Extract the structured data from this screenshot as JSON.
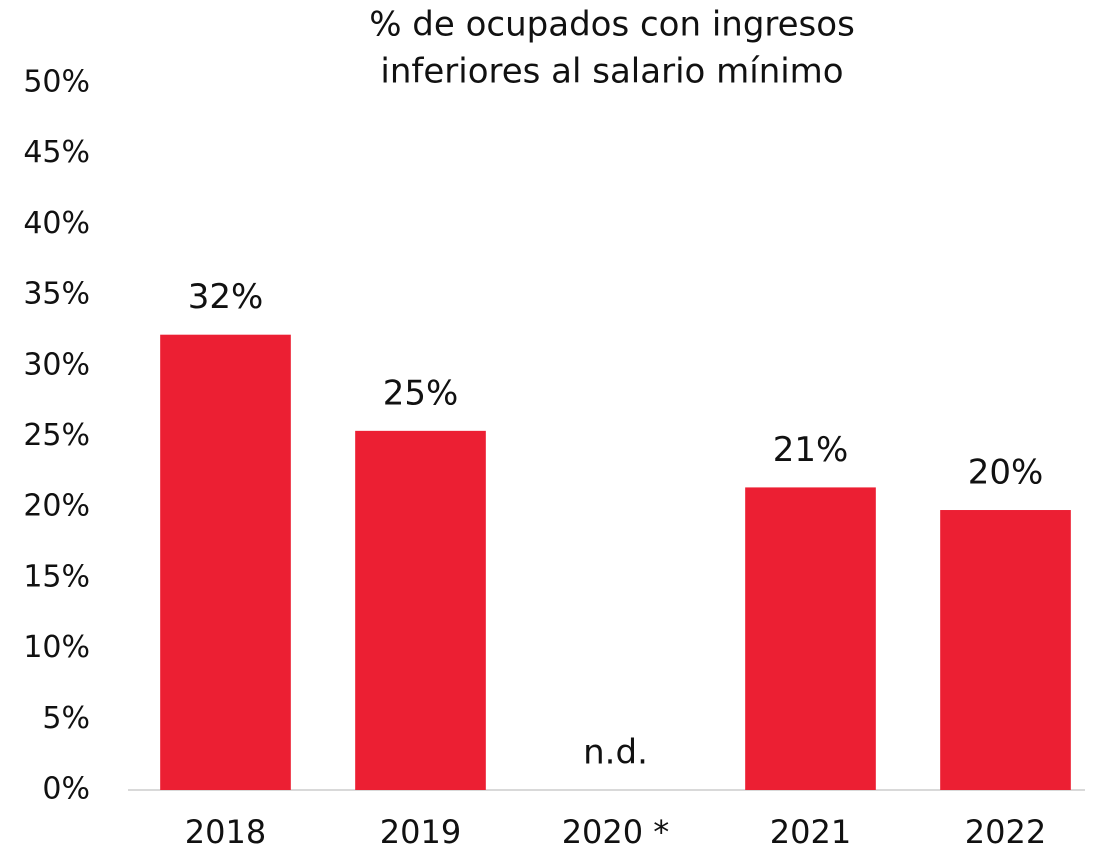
{
  "chart_data": {
    "type": "bar",
    "title": [
      "% de ocupados con ingresos",
      "inferiores al salario mínimo"
    ],
    "categories": [
      "2018",
      "2019",
      "2020 *",
      "2021",
      "2022"
    ],
    "values": [
      32.2,
      25.4,
      null,
      21.4,
      19.8
    ],
    "value_labels": [
      "32%",
      "25%",
      "n.d.",
      "21%",
      "20%"
    ],
    "color": "#ec1f33",
    "ylim": [
      0,
      50
    ],
    "yticks": [
      {
        "value": 0,
        "label": "0%"
      },
      {
        "value": 5,
        "label": "5%"
      },
      {
        "value": 10,
        "label": "10%"
      },
      {
        "value": 15,
        "label": "15%"
      },
      {
        "value": 20,
        "label": "20%"
      },
      {
        "value": 25,
        "label": "25%"
      },
      {
        "value": 30,
        "label": "30%"
      },
      {
        "value": 35,
        "label": "35%"
      },
      {
        "value": 40,
        "label": "40%"
      },
      {
        "value": 45,
        "label": "45%"
      },
      {
        "value": 50,
        "label": "50%"
      }
    ],
    "grid": false
  }
}
